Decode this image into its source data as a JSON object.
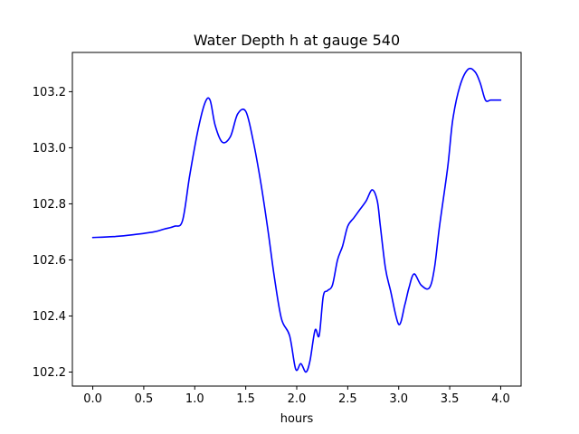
{
  "chart_data": {
    "type": "line",
    "title": "Water Depth h at gauge 540",
    "xlabel": "hours",
    "ylabel": "",
    "xlim": [
      -0.2,
      4.2
    ],
    "ylim": [
      102.15,
      103.34
    ],
    "xticks": [
      0.0,
      0.5,
      1.0,
      1.5,
      2.0,
      2.5,
      3.0,
      3.5,
      4.0
    ],
    "xtick_labels": [
      "0.0",
      "0.5",
      "1.0",
      "1.5",
      "2.0",
      "2.5",
      "3.0",
      "3.5",
      "4.0"
    ],
    "yticks": [
      102.2,
      102.4,
      102.6,
      102.8,
      103.0,
      103.2
    ],
    "ytick_labels": [
      "102.2",
      "102.4",
      "102.6",
      "102.8",
      "103.0",
      "103.2"
    ],
    "grid": false,
    "series": [
      {
        "color": "#0000ff",
        "x": [
          0.0,
          0.2,
          0.4,
          0.6,
          0.7,
          0.8,
          0.88,
          0.95,
          1.03,
          1.1,
          1.15,
          1.2,
          1.27,
          1.35,
          1.42,
          1.5,
          1.57,
          1.65,
          1.72,
          1.78,
          1.85,
          1.93,
          1.99,
          2.04,
          2.09,
          2.13,
          2.18,
          2.22,
          2.26,
          2.3,
          2.35,
          2.4,
          2.45,
          2.5,
          2.56,
          2.62,
          2.68,
          2.74,
          2.79,
          2.82,
          2.87,
          2.92,
          3.0,
          3.06,
          3.1,
          3.15,
          3.22,
          3.3,
          3.35,
          3.4,
          3.48,
          3.53,
          3.6,
          3.68,
          3.75,
          3.8,
          3.85,
          3.9,
          3.95,
          4.0
        ],
        "y": [
          102.68,
          102.683,
          102.69,
          102.7,
          102.71,
          102.72,
          102.74,
          102.9,
          103.06,
          103.16,
          103.17,
          103.08,
          103.02,
          103.04,
          103.12,
          103.13,
          103.03,
          102.87,
          102.7,
          102.54,
          102.39,
          102.33,
          102.21,
          102.23,
          102.2,
          102.24,
          102.35,
          102.33,
          102.47,
          102.49,
          102.51,
          102.6,
          102.65,
          102.72,
          102.75,
          102.78,
          102.81,
          102.85,
          102.81,
          102.72,
          102.57,
          102.49,
          102.37,
          102.44,
          102.5,
          102.55,
          102.51,
          102.5,
          102.57,
          102.72,
          102.93,
          103.1,
          103.22,
          103.28,
          103.27,
          103.23,
          103.17,
          103.17,
          103.17,
          103.17
        ]
      }
    ]
  }
}
